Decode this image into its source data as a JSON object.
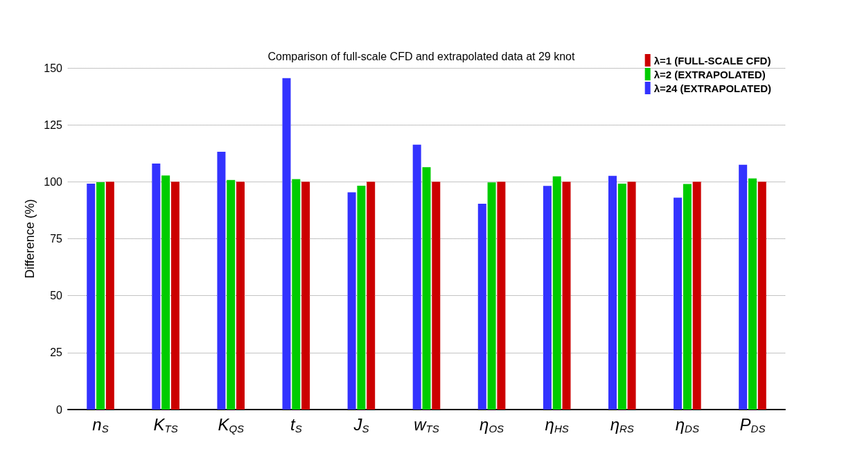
{
  "chart_data": {
    "type": "bar",
    "title": "Comparison of full-scale CFD and extrapolated data at 29 knot",
    "ylabel": "Difference (%)",
    "categories": [
      "n$_{S}$",
      "K$_{TS}$",
      "K$_{QS}$",
      "t$_{S}$",
      "J$_{S}$",
      "w$_{TS}$",
      "η$_{OS}$",
      "η$_{HS}$",
      "η$_{RS}$",
      "η$_{DS}$",
      "P$_{DS}$"
    ],
    "series": [
      {
        "name": "λ=24 (EXTRAPOLATED)",
        "color": "#3333ff",
        "values": [
          99.2,
          108,
          113.2,
          145.5,
          95.4,
          116.3,
          90.4,
          98.2,
          102.6,
          93,
          107.5
        ]
      },
      {
        "name": "λ=2 (EXTRAPOLATED)",
        "color": "#00cc00",
        "values": [
          99.8,
          102.8,
          100.8,
          101.2,
          98.3,
          106.4,
          99.7,
          102.4,
          99.2,
          99,
          101.5
        ]
      },
      {
        "name": "λ=1 (FULL-SCALE CFD)",
        "color": "#cc0000",
        "values": [
          100,
          100,
          100,
          100,
          100,
          100,
          100,
          100,
          100,
          100,
          100
        ]
      }
    ],
    "ylim": [
      0,
      150
    ],
    "yticks": [
      0,
      25,
      50,
      75,
      100,
      125,
      150
    ],
    "grid": "y",
    "legend": "top right"
  }
}
